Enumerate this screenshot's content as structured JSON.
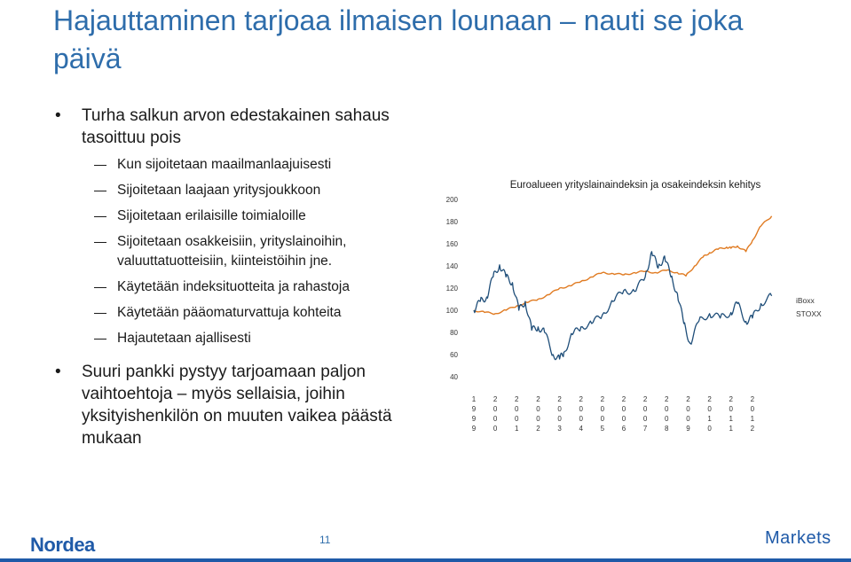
{
  "slide": {
    "title": "Hajauttaminen tarjoaa ilmaisen lounaan – nauti se joka päivä",
    "page_number": "11"
  },
  "bullets": {
    "b1": "Turha salkun arvon edestakainen sahaus tasoittuu pois",
    "b1_sub": [
      "Kun sijoitetaan maailmanlaajuisesti",
      "Sijoitetaan laajaan yritysjoukkoon",
      "Sijoitetaan erilaisille toimialoille",
      "Sijoitetaan osakkeisiin, yrityslainoihin, valuuttatuotteisiin, kiinteistöihin jne.",
      "Käytetään indeksituotteita ja rahastoja",
      "Käytetään pääomaturvattuja kohteita",
      "Hajautetaan ajallisesti"
    ],
    "b2": "Suuri pankki pystyy tarjoamaan paljon vaihtoehtoja – myös sellaisia, joihin yksityishenkilön on muuten vaikea päästä mukaan"
  },
  "footer": {
    "brand_left": "Nordea",
    "brand_right": "Markets"
  },
  "chart_data": {
    "type": "line",
    "title": "Euroalueen yrityslainaindeksin ja osakeindeksin kehitys",
    "xlabel": "",
    "ylabel": "",
    "ylim": [
      40,
      200
    ],
    "yticks": [
      40,
      60,
      80,
      100,
      120,
      140,
      160,
      180,
      200
    ],
    "xticks": [
      "1999",
      "2000",
      "2001",
      "2002",
      "2003",
      "2004",
      "2005",
      "2006",
      "2007",
      "2008",
      "2009",
      "2010",
      "2011",
      "2012"
    ],
    "xlim": [
      1999,
      2013
    ],
    "legend_position": "right",
    "grid": false,
    "series": [
      {
        "name": "iBoxx",
        "color": "#e07b22",
        "x": [
          1999,
          1999.5,
          2000,
          2000.5,
          2001,
          2001.5,
          2002,
          2002.5,
          2003,
          2003.5,
          2004,
          2004.5,
          2005,
          2005.5,
          2006,
          2006.5,
          2007,
          2007.5,
          2008,
          2008.5,
          2008.9,
          2009.3,
          2009.7,
          2010,
          2010.4,
          2010.8,
          2011,
          2011.3,
          2011.7,
          2012,
          2012.4,
          2012.9
        ],
        "values": [
          100,
          98,
          97,
          100,
          104,
          107,
          110,
          114,
          120,
          122,
          126,
          130,
          134,
          133,
          132,
          134,
          135,
          134,
          136,
          134,
          131,
          140,
          148,
          152,
          155,
          157,
          156,
          158,
          153,
          163,
          176,
          185
        ]
      },
      {
        "name": "STOXX",
        "color": "#1f4e79",
        "x": [
          1999,
          1999.3,
          1999.6,
          1999.9,
          2000.2,
          2000.5,
          2000.8,
          2001.1,
          2001.4,
          2001.7,
          2002,
          2002.3,
          2002.7,
          2003.0,
          2003.2,
          2003.6,
          2004,
          2004.5,
          2005,
          2005.5,
          2006,
          2006.5,
          2007,
          2007.3,
          2007.6,
          2007.9,
          2008.2,
          2008.5,
          2008.8,
          2009.1,
          2009.5,
          2010,
          2010.5,
          2011,
          2011.3,
          2011.7,
          2012,
          2012.4,
          2012.9
        ],
        "values": [
          100,
          108,
          112,
          130,
          141,
          130,
          125,
          100,
          108,
          82,
          85,
          80,
          60,
          56,
          62,
          78,
          85,
          88,
          96,
          108,
          118,
          117,
          130,
          153,
          138,
          149,
          130,
          115,
          88,
          70,
          90,
          97,
          93,
          98,
          106,
          90,
          93,
          106,
          113
        ]
      }
    ]
  }
}
